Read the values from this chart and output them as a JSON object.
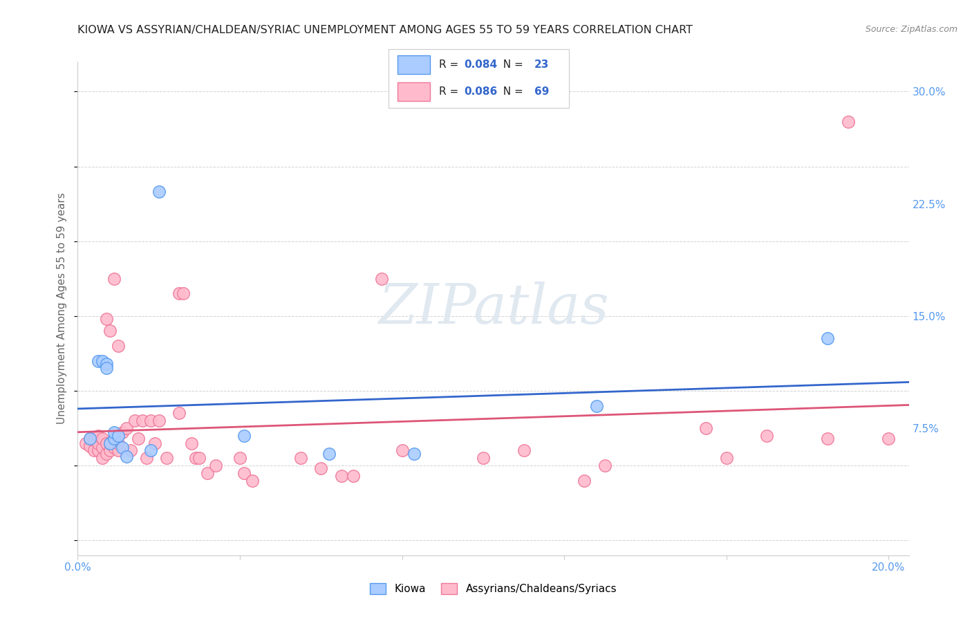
{
  "title": "KIOWA VS ASSYRIAN/CHALDEAN/SYRIAC UNEMPLOYMENT AMONG AGES 55 TO 59 YEARS CORRELATION CHART",
  "source": "Source: ZipAtlas.com",
  "ylabel": "Unemployment Among Ages 55 to 59 years",
  "xlim": [
    0.0,
    0.205
  ],
  "ylim": [
    -0.01,
    0.32
  ],
  "xticks": [
    0.0,
    0.04,
    0.08,
    0.12,
    0.16,
    0.2
  ],
  "xtick_labels": [
    "0.0%",
    "",
    "",
    "",
    "",
    "20.0%"
  ],
  "yticks_right": [
    0.075,
    0.15,
    0.225,
    0.3
  ],
  "ytick_right_labels": [
    "7.5%",
    "15.0%",
    "22.5%",
    "30.0%"
  ],
  "background_color": "#ffffff",
  "grid_color": "#cccccc",
  "kiowa_color": "#aaccff",
  "kiowa_edge_color": "#5599ee",
  "assyrian_color": "#ffbbcc",
  "assyrian_edge_color": "#ee7799",
  "kiowa_line_color": "#3366cc",
  "assyrian_line_color": "#dd5577",
  "legend_text_color": "#3366cc",
  "kiowa_R": 0.084,
  "kiowa_N": 23,
  "assyrian_R": 0.086,
  "assyrian_N": 69,
  "kiowa_x": [
    0.003,
    0.005,
    0.006,
    0.007,
    0.007,
    0.008,
    0.009,
    0.009,
    0.01,
    0.011,
    0.012,
    0.018,
    0.02,
    0.041,
    0.062,
    0.083,
    0.128,
    0.185
  ],
  "kiowa_y": [
    0.068,
    0.12,
    0.12,
    0.118,
    0.115,
    0.065,
    0.068,
    0.072,
    0.07,
    0.062,
    0.056,
    0.06,
    0.233,
    0.07,
    0.058,
    0.058,
    0.09,
    0.135
  ],
  "assyrian_x": [
    0.002,
    0.003,
    0.003,
    0.004,
    0.004,
    0.005,
    0.005,
    0.005,
    0.006,
    0.006,
    0.006,
    0.007,
    0.007,
    0.007,
    0.008,
    0.008,
    0.008,
    0.009,
    0.009,
    0.01,
    0.01,
    0.01,
    0.011,
    0.012,
    0.013,
    0.014,
    0.015,
    0.016,
    0.017,
    0.018,
    0.019,
    0.02,
    0.022,
    0.025,
    0.025,
    0.026,
    0.028,
    0.029,
    0.03,
    0.032,
    0.034,
    0.04,
    0.041,
    0.043,
    0.055,
    0.06,
    0.065,
    0.068,
    0.075,
    0.08,
    0.1,
    0.11,
    0.125,
    0.13,
    0.155,
    0.16,
    0.17,
    0.185,
    0.19,
    0.2
  ],
  "assyrian_y": [
    0.065,
    0.063,
    0.068,
    0.06,
    0.067,
    0.06,
    0.065,
    0.07,
    0.055,
    0.062,
    0.068,
    0.058,
    0.065,
    0.148,
    0.06,
    0.065,
    0.14,
    0.175,
    0.062,
    0.06,
    0.065,
    0.13,
    0.072,
    0.075,
    0.06,
    0.08,
    0.068,
    0.08,
    0.055,
    0.08,
    0.065,
    0.08,
    0.055,
    0.085,
    0.165,
    0.165,
    0.065,
    0.055,
    0.055,
    0.045,
    0.05,
    0.055,
    0.045,
    0.04,
    0.055,
    0.048,
    0.043,
    0.043,
    0.175,
    0.06,
    0.055,
    0.06,
    0.04,
    0.05,
    0.075,
    0.055,
    0.07,
    0.068,
    0.28,
    0.068
  ]
}
